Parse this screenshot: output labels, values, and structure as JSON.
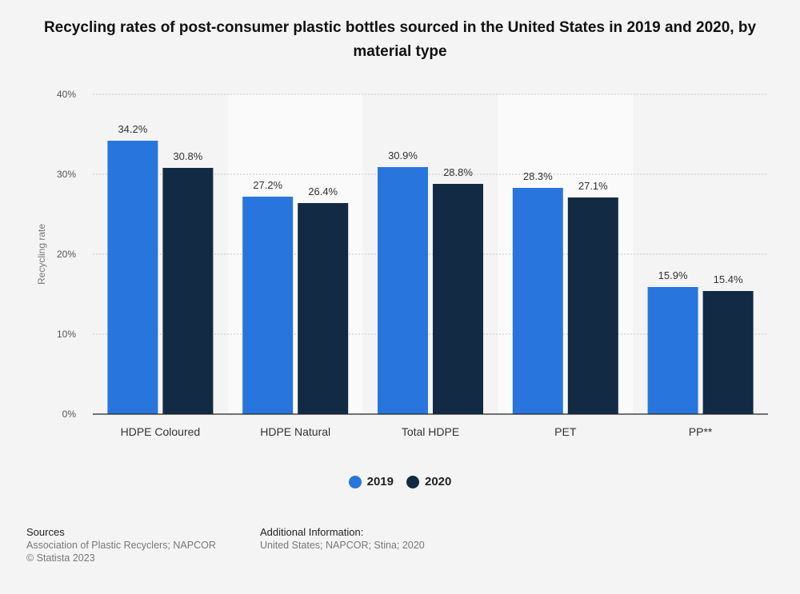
{
  "title": "Recycling rates of post-consumer plastic bottles sourced in the United States in 2019 and 2020, by material type",
  "colors": {
    "series_2019": "#2876dd",
    "series_2020": "#132a44"
  },
  "chart_data": {
    "type": "bar",
    "title": "Recycling rates of post-consumer plastic bottles sourced in the United States in 2019 and 2020, by material type",
    "xlabel": "",
    "ylabel": "Recycling rate",
    "ylim": [
      0,
      40
    ],
    "yticks": [
      0,
      10,
      20,
      30,
      40
    ],
    "ytick_labels": [
      "0%",
      "10%",
      "20%",
      "30%",
      "40%"
    ],
    "categories": [
      "HDPE Coloured",
      "HDPE Natural",
      "Total HDPE",
      "PET",
      "PP**"
    ],
    "series": [
      {
        "name": "2019",
        "values": [
          34.2,
          27.2,
          30.9,
          28.3,
          15.9
        ],
        "labels": [
          "34.2%",
          "27.2%",
          "30.9%",
          "28.3%",
          "15.9%"
        ]
      },
      {
        "name": "2020",
        "values": [
          30.8,
          26.4,
          28.8,
          27.1,
          15.4
        ],
        "labels": [
          "30.8%",
          "26.4%",
          "28.8%",
          "27.1%",
          "15.4%"
        ]
      }
    ],
    "legend_position": "bottom-center",
    "grid": true
  },
  "legend": {
    "item_2019": "2019",
    "item_2020": "2020"
  },
  "footer": {
    "sources_heading": "Sources",
    "sources_line1": "Association of Plastic Recyclers; NAPCOR",
    "sources_line2": "© Statista 2023",
    "additional_heading": "Additional Information:",
    "additional_text": "United States; NAPCOR; Stina; 2020"
  }
}
